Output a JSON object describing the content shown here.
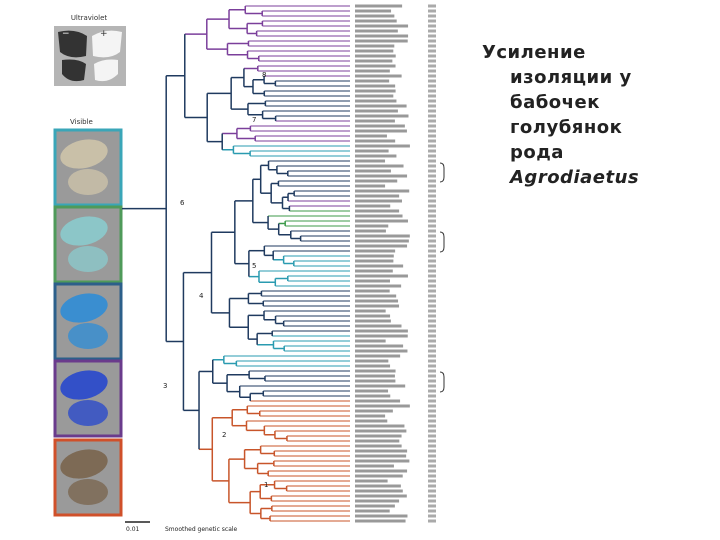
{
  "slide": {
    "title_lines": [
      "Усиление",
      "изоляции у",
      "бабочек",
      "голубянок",
      "рода",
      "Agrodiaetus"
    ]
  },
  "figure": {
    "ultraviolet_label": "Ultraviolet",
    "uv_minus": "−",
    "uv_plus": "+",
    "visible_label": "Visible",
    "clade_numbers": [
      "1",
      "2",
      "3",
      "4",
      "5",
      "6",
      "7",
      "8"
    ],
    "scale_bar": "0.01",
    "scale_caption": "Smoothed genetic scale"
  }
}
